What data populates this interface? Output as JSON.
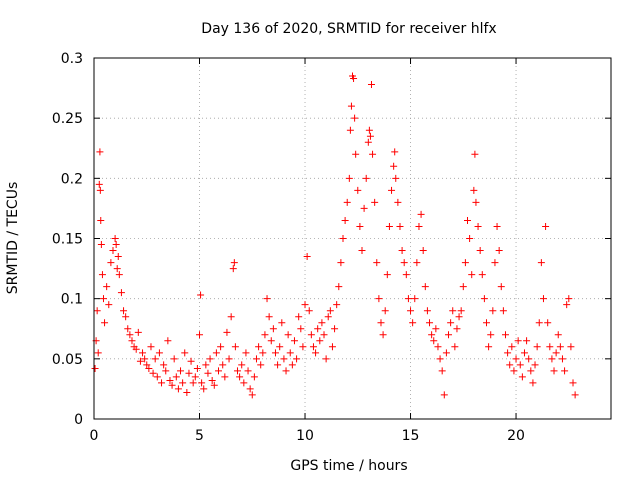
{
  "chart_data": {
    "type": "scatter",
    "title": "Day 136 of 2020, SRMTID for receiver hlfx",
    "xlabel": "GPS time / hours",
    "ylabel": "SRMTID / TECUs",
    "xlim": [
      0,
      24.5
    ],
    "ylim": [
      0,
      0.3
    ],
    "xticks": [
      0,
      5,
      10,
      15,
      20
    ],
    "xtick_labels": [
      "0",
      "5",
      "10",
      "15",
      "20"
    ],
    "yticks": [
      0,
      0.05,
      0.1,
      0.15,
      0.2,
      0.25,
      0.3
    ],
    "ytick_labels": [
      "0",
      "0.05",
      "0.1",
      "0.15",
      "0.2",
      "0.25",
      "0.3"
    ],
    "grid": true,
    "marker": "plus",
    "marker_color": "#ff0000",
    "series": [
      {
        "name": "SRMTID",
        "points": [
          [
            0.05,
            0.042
          ],
          [
            0.1,
            0.065
          ],
          [
            0.15,
            0.09
          ],
          [
            0.2,
            0.055
          ],
          [
            0.25,
            0.195
          ],
          [
            0.28,
            0.222
          ],
          [
            0.3,
            0.19
          ],
          [
            0.32,
            0.165
          ],
          [
            0.35,
            0.145
          ],
          [
            0.4,
            0.12
          ],
          [
            0.45,
            0.1
          ],
          [
            0.5,
            0.08
          ],
          [
            0.6,
            0.11
          ],
          [
            0.7,
            0.095
          ],
          [
            0.8,
            0.13
          ],
          [
            0.9,
            0.14
          ],
          [
            1.0,
            0.15
          ],
          [
            1.05,
            0.145
          ],
          [
            1.1,
            0.125
          ],
          [
            1.15,
            0.135
          ],
          [
            1.2,
            0.12
          ],
          [
            1.3,
            0.105
          ],
          [
            1.4,
            0.09
          ],
          [
            1.5,
            0.085
          ],
          [
            1.6,
            0.075
          ],
          [
            1.7,
            0.07
          ],
          [
            1.8,
            0.065
          ],
          [
            1.9,
            0.06
          ],
          [
            2.0,
            0.058
          ],
          [
            2.1,
            0.072
          ],
          [
            2.2,
            0.048
          ],
          [
            2.3,
            0.055
          ],
          [
            2.4,
            0.05
          ],
          [
            2.5,
            0.045
          ],
          [
            2.6,
            0.042
          ],
          [
            2.7,
            0.06
          ],
          [
            2.8,
            0.038
          ],
          [
            2.9,
            0.05
          ],
          [
            3.0,
            0.035
          ],
          [
            3.1,
            0.055
          ],
          [
            3.2,
            0.03
          ],
          [
            3.3,
            0.045
          ],
          [
            3.4,
            0.04
          ],
          [
            3.5,
            0.065
          ],
          [
            3.6,
            0.032
          ],
          [
            3.7,
            0.028
          ],
          [
            3.8,
            0.05
          ],
          [
            3.9,
            0.035
          ],
          [
            4.0,
            0.025
          ],
          [
            4.1,
            0.04
          ],
          [
            4.2,
            0.03
          ],
          [
            4.3,
            0.055
          ],
          [
            4.4,
            0.022
          ],
          [
            4.5,
            0.038
          ],
          [
            4.6,
            0.048
          ],
          [
            4.7,
            0.03
          ],
          [
            4.8,
            0.035
          ],
          [
            4.9,
            0.042
          ],
          [
            5.0,
            0.07
          ],
          [
            5.05,
            0.103
          ],
          [
            5.1,
            0.03
          ],
          [
            5.2,
            0.025
          ],
          [
            5.3,
            0.045
          ],
          [
            5.4,
            0.038
          ],
          [
            5.5,
            0.05
          ],
          [
            5.6,
            0.032
          ],
          [
            5.7,
            0.028
          ],
          [
            5.8,
            0.055
          ],
          [
            5.9,
            0.04
          ],
          [
            6.0,
            0.06
          ],
          [
            6.1,
            0.045
          ],
          [
            6.2,
            0.035
          ],
          [
            6.3,
            0.072
          ],
          [
            6.4,
            0.05
          ],
          [
            6.5,
            0.085
          ],
          [
            6.6,
            0.125
          ],
          [
            6.65,
            0.13
          ],
          [
            6.7,
            0.06
          ],
          [
            6.8,
            0.04
          ],
          [
            6.9,
            0.035
          ],
          [
            7.0,
            0.045
          ],
          [
            7.1,
            0.03
          ],
          [
            7.2,
            0.055
          ],
          [
            7.3,
            0.04
          ],
          [
            7.4,
            0.025
          ],
          [
            7.5,
            0.02
          ],
          [
            7.6,
            0.035
          ],
          [
            7.7,
            0.05
          ],
          [
            7.8,
            0.06
          ],
          [
            7.9,
            0.045
          ],
          [
            8.0,
            0.055
          ],
          [
            8.1,
            0.07
          ],
          [
            8.2,
            0.1
          ],
          [
            8.3,
            0.085
          ],
          [
            8.4,
            0.065
          ],
          [
            8.5,
            0.075
          ],
          [
            8.6,
            0.055
          ],
          [
            8.7,
            0.045
          ],
          [
            8.8,
            0.06
          ],
          [
            8.9,
            0.08
          ],
          [
            9.0,
            0.05
          ],
          [
            9.1,
            0.04
          ],
          [
            9.2,
            0.07
          ],
          [
            9.3,
            0.055
          ],
          [
            9.4,
            0.045
          ],
          [
            9.5,
            0.065
          ],
          [
            9.6,
            0.05
          ],
          [
            9.7,
            0.085
          ],
          [
            9.8,
            0.075
          ],
          [
            9.9,
            0.06
          ],
          [
            10.0,
            0.095
          ],
          [
            10.1,
            0.135
          ],
          [
            10.2,
            0.09
          ],
          [
            10.3,
            0.07
          ],
          [
            10.4,
            0.06
          ],
          [
            10.5,
            0.055
          ],
          [
            10.6,
            0.075
          ],
          [
            10.7,
            0.065
          ],
          [
            10.8,
            0.08
          ],
          [
            10.9,
            0.07
          ],
          [
            11.0,
            0.05
          ],
          [
            11.1,
            0.085
          ],
          [
            11.2,
            0.09
          ],
          [
            11.3,
            0.06
          ],
          [
            11.4,
            0.075
          ],
          [
            11.5,
            0.095
          ],
          [
            11.6,
            0.11
          ],
          [
            11.7,
            0.13
          ],
          [
            11.8,
            0.15
          ],
          [
            11.9,
            0.165
          ],
          [
            12.0,
            0.18
          ],
          [
            12.1,
            0.2
          ],
          [
            12.15,
            0.24
          ],
          [
            12.2,
            0.26
          ],
          [
            12.25,
            0.285
          ],
          [
            12.3,
            0.283
          ],
          [
            12.35,
            0.25
          ],
          [
            12.4,
            0.22
          ],
          [
            12.5,
            0.19
          ],
          [
            12.6,
            0.16
          ],
          [
            12.7,
            0.14
          ],
          [
            12.8,
            0.175
          ],
          [
            12.9,
            0.2
          ],
          [
            13.0,
            0.23
          ],
          [
            13.05,
            0.24
          ],
          [
            13.1,
            0.235
          ],
          [
            13.15,
            0.278
          ],
          [
            13.2,
            0.22
          ],
          [
            13.3,
            0.18
          ],
          [
            13.4,
            0.13
          ],
          [
            13.5,
            0.1
          ],
          [
            13.6,
            0.08
          ],
          [
            13.7,
            0.07
          ],
          [
            13.8,
            0.09
          ],
          [
            13.9,
            0.12
          ],
          [
            14.0,
            0.16
          ],
          [
            14.1,
            0.19
          ],
          [
            14.2,
            0.21
          ],
          [
            14.25,
            0.222
          ],
          [
            14.3,
            0.2
          ],
          [
            14.4,
            0.18
          ],
          [
            14.5,
            0.16
          ],
          [
            14.6,
            0.14
          ],
          [
            14.7,
            0.13
          ],
          [
            14.8,
            0.12
          ],
          [
            14.9,
            0.1
          ],
          [
            15.0,
            0.09
          ],
          [
            15.1,
            0.08
          ],
          [
            15.2,
            0.1
          ],
          [
            15.3,
            0.13
          ],
          [
            15.4,
            0.16
          ],
          [
            15.5,
            0.17
          ],
          [
            15.6,
            0.14
          ],
          [
            15.7,
            0.11
          ],
          [
            15.8,
            0.09
          ],
          [
            15.9,
            0.08
          ],
          [
            16.0,
            0.07
          ],
          [
            16.1,
            0.065
          ],
          [
            16.2,
            0.075
          ],
          [
            16.3,
            0.06
          ],
          [
            16.4,
            0.05
          ],
          [
            16.5,
            0.04
          ],
          [
            16.6,
            0.02
          ],
          [
            16.7,
            0.055
          ],
          [
            16.8,
            0.07
          ],
          [
            16.9,
            0.08
          ],
          [
            17.0,
            0.09
          ],
          [
            17.1,
            0.06
          ],
          [
            17.2,
            0.075
          ],
          [
            17.3,
            0.085
          ],
          [
            17.4,
            0.09
          ],
          [
            17.5,
            0.11
          ],
          [
            17.6,
            0.13
          ],
          [
            17.7,
            0.165
          ],
          [
            17.8,
            0.15
          ],
          [
            17.9,
            0.12
          ],
          [
            18.0,
            0.19
          ],
          [
            18.05,
            0.22
          ],
          [
            18.1,
            0.18
          ],
          [
            18.2,
            0.16
          ],
          [
            18.3,
            0.14
          ],
          [
            18.4,
            0.12
          ],
          [
            18.5,
            0.1
          ],
          [
            18.6,
            0.08
          ],
          [
            18.7,
            0.06
          ],
          [
            18.8,
            0.07
          ],
          [
            18.9,
            0.09
          ],
          [
            19.0,
            0.13
          ],
          [
            19.1,
            0.16
          ],
          [
            19.2,
            0.14
          ],
          [
            19.3,
            0.11
          ],
          [
            19.4,
            0.09
          ],
          [
            19.5,
            0.07
          ],
          [
            19.6,
            0.055
          ],
          [
            19.7,
            0.045
          ],
          [
            19.8,
            0.06
          ],
          [
            19.9,
            0.04
          ],
          [
            20.0,
            0.05
          ],
          [
            20.1,
            0.065
          ],
          [
            20.2,
            0.045
          ],
          [
            20.3,
            0.035
          ],
          [
            20.4,
            0.055
          ],
          [
            20.5,
            0.065
          ],
          [
            20.6,
            0.05
          ],
          [
            20.7,
            0.04
          ],
          [
            20.8,
            0.03
          ],
          [
            20.9,
            0.045
          ],
          [
            21.0,
            0.06
          ],
          [
            21.1,
            0.08
          ],
          [
            21.2,
            0.13
          ],
          [
            21.3,
            0.1
          ],
          [
            21.4,
            0.16
          ],
          [
            21.5,
            0.08
          ],
          [
            21.6,
            0.06
          ],
          [
            21.7,
            0.05
          ],
          [
            21.8,
            0.04
          ],
          [
            21.9,
            0.055
          ],
          [
            22.0,
            0.07
          ],
          [
            22.1,
            0.06
          ],
          [
            22.2,
            0.05
          ],
          [
            22.3,
            0.04
          ],
          [
            22.4,
            0.095
          ],
          [
            22.5,
            0.1
          ],
          [
            22.6,
            0.06
          ],
          [
            22.7,
            0.03
          ],
          [
            22.8,
            0.02
          ]
        ]
      }
    ]
  }
}
